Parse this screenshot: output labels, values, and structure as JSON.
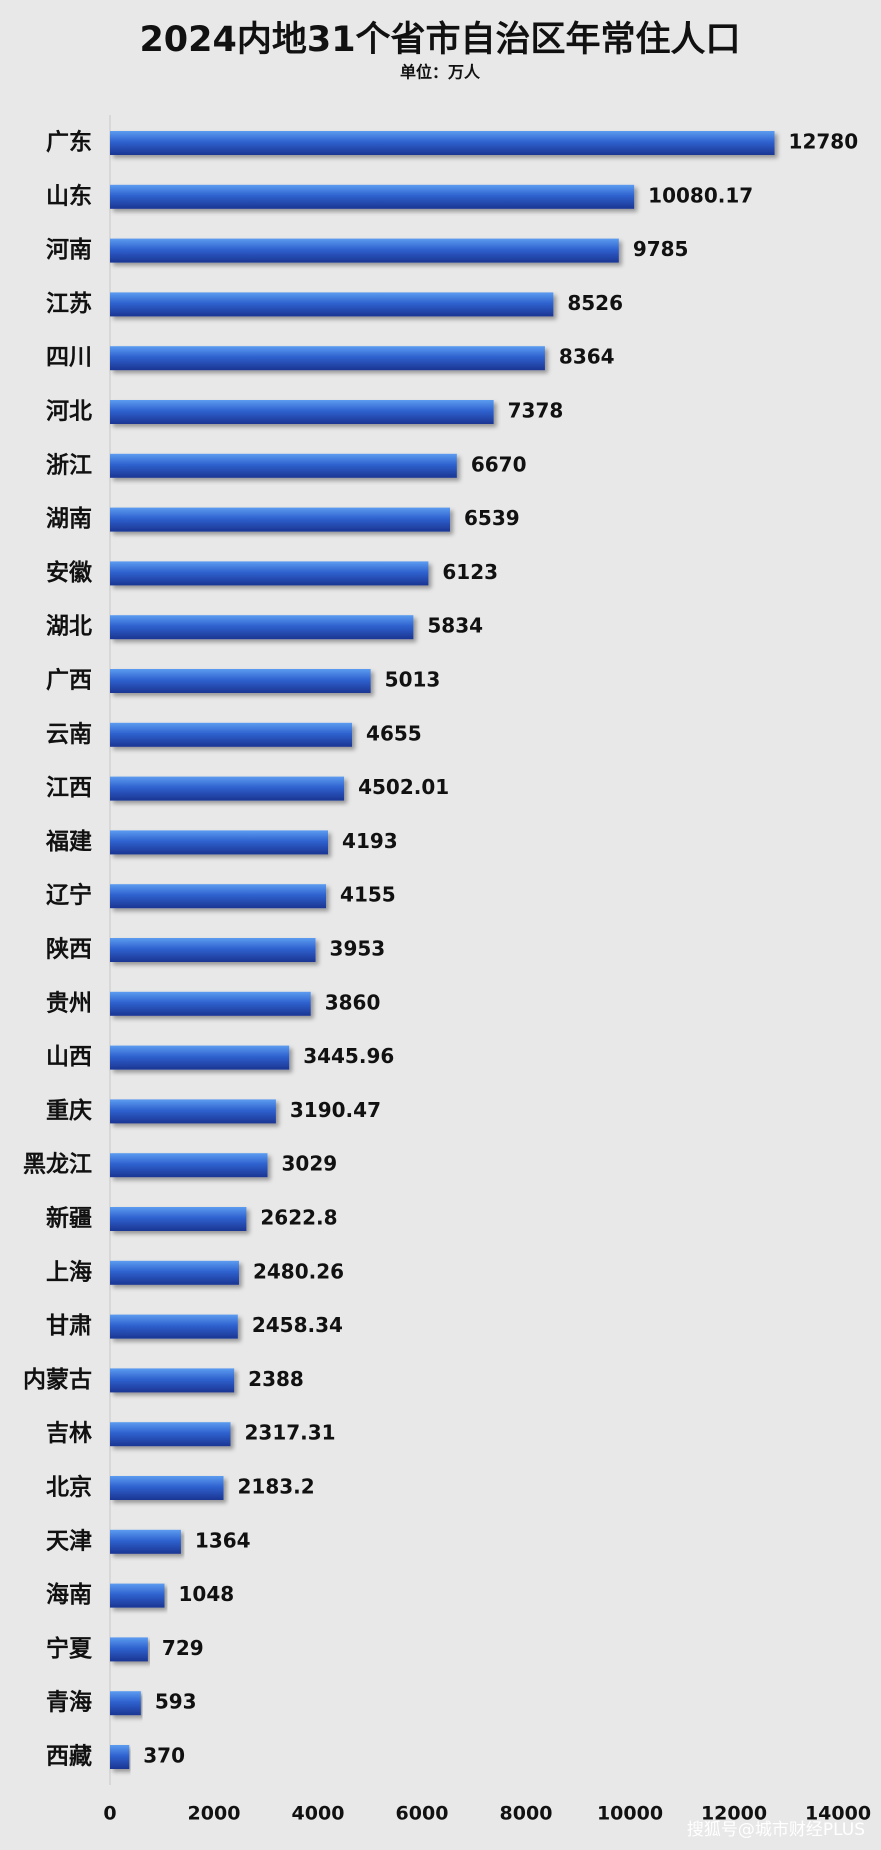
{
  "chart_data": {
    "type": "bar",
    "orientation": "horizontal",
    "title": "2024内地31个省市自治区年常住人口",
    "subtitle": "单位：万人",
    "watermark": "搜狐号@城市财经PLUS",
    "categories": [
      "广东",
      "山东",
      "河南",
      "江苏",
      "四川",
      "河北",
      "浙江",
      "湖南",
      "安徽",
      "湖北",
      "广西",
      "云南",
      "江西",
      "福建",
      "辽宁",
      "陕西",
      "贵州",
      "山西",
      "重庆",
      "黑龙江",
      "新疆",
      "上海",
      "甘肃",
      "内蒙古",
      "吉林",
      "北京",
      "天津",
      "海南",
      "宁夏",
      "青海",
      "西藏"
    ],
    "values": [
      12780,
      10080.17,
      9785,
      8526,
      8364,
      7378,
      6670,
      6539,
      6123,
      5834,
      5013,
      4655,
      4502.01,
      4193,
      4155,
      3953,
      3860,
      3445.96,
      3190.47,
      3029,
      2622.8,
      2480.26,
      2458.34,
      2388,
      2317.31,
      2183.2,
      1364,
      1048,
      729,
      593,
      370
    ],
    "color": "#2a55c4",
    "xlim": [
      0,
      14000
    ],
    "xticks": [
      0,
      2000,
      4000,
      6000,
      8000,
      10000,
      12000,
      14000
    ],
    "grid": false
  }
}
